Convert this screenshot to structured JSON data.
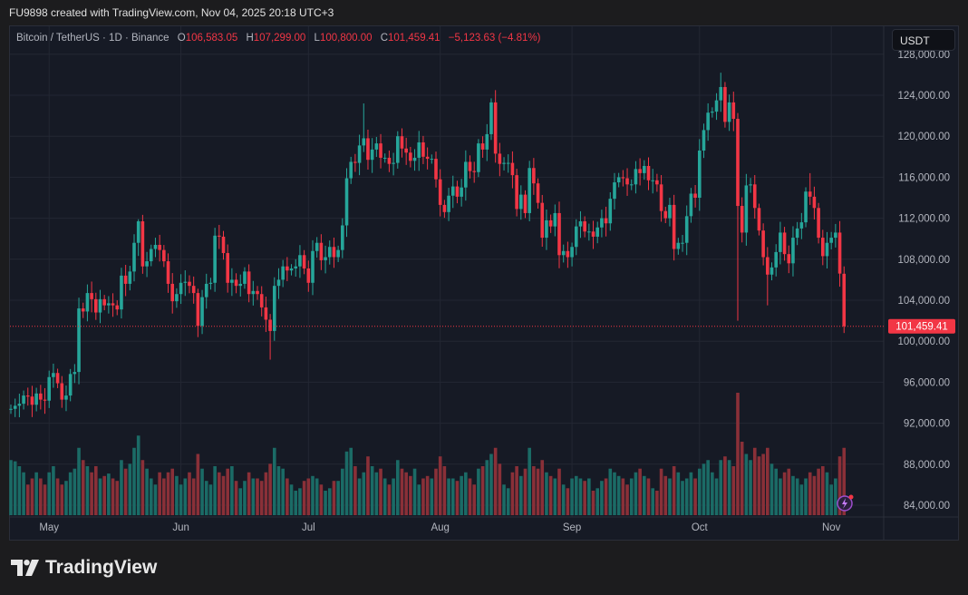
{
  "credit": "FU9898 created with TradingView.com, Nov 04, 2025 20:18 UTC+3",
  "legend": {
    "symbol": "Bitcoin / TetherUS · 1D · Binance",
    "o_label": "O",
    "o": "106,583.05",
    "h_label": "H",
    "h": "107,299.00",
    "l_label": "L",
    "l": "100,800.00",
    "c_label": "C",
    "c": "101,459.41",
    "change": "−5,123.63 (−4.81%)"
  },
  "currency_button": "USDT",
  "logo_text": "TradingView",
  "colors": {
    "up": "#26a69a",
    "down": "#f23645",
    "vol_up": "#1b6b66",
    "vol_down": "#8a3038",
    "background": "#161a25"
  },
  "chart_data": {
    "type": "candlestick",
    "start_date": "2025-04-22",
    "end_date": "2025-11-04",
    "interval": "1D",
    "ylim": [
      84000,
      128000
    ],
    "y_ticks": [
      128000,
      124000,
      120000,
      116000,
      112000,
      108000,
      104000,
      100000,
      96000,
      92000,
      88000,
      84000
    ],
    "y_tick_labels": [
      "128,000.00",
      "124,000.00",
      "120,000.00",
      "116,000.00",
      "112,000.00",
      "108,000.00",
      "104,000.00",
      "100,000.00",
      "96,000.00",
      "92,000.00",
      "88,000.00",
      "84,000.00"
    ],
    "x_tick_labels": [
      {
        "label": "May",
        "date": "2025-05-01"
      },
      {
        "label": "Jun",
        "date": "2025-06-01"
      },
      {
        "label": "Jul",
        "date": "2025-07-01"
      },
      {
        "label": "Aug",
        "date": "2025-08-01"
      },
      {
        "label": "Sep",
        "date": "2025-09-01"
      },
      {
        "label": "Oct",
        "date": "2025-10-01"
      },
      {
        "label": "Nov",
        "date": "2025-11-01"
      }
    ],
    "last_price": 101459.41,
    "last_price_label": "101,459.41",
    "grid": true,
    "close_k": [
      93.4,
      93.7,
      93.9,
      94.7,
      94.6,
      93.8,
      94.9,
      94.3,
      94.2,
      96.5,
      96.9,
      95.9,
      94.3,
      94.7,
      96.8,
      97.0,
      103.2,
      102.9,
      104.7,
      104.1,
      102.8,
      104.1,
      103.5,
      103.7,
      103.5,
      103.1,
      106.4,
      105.6,
      106.8,
      109.6,
      111.7,
      107.3,
      107.8,
      109.0,
      109.4,
      108.9,
      107.8,
      105.6,
      103.9,
      104.6,
      105.7,
      105.8,
      105.4,
      104.7,
      101.5,
      104.3,
      105.6,
      105.7,
      110.3,
      110.2,
      108.6,
      105.7,
      106.0,
      105.4,
      105.6,
      106.8,
      104.6,
      104.9,
      104.6,
      103.3,
      102.1,
      101.0,
      105.4,
      106.0,
      107.3,
      106.9,
      107.1,
      107.3,
      108.4,
      107.1,
      105.7,
      108.8,
      109.6,
      107.9,
      108.2,
      109.2,
      108.2,
      108.9,
      111.3,
      115.9,
      117.5,
      117.4,
      119.1,
      119.8,
      117.7,
      118.7,
      119.3,
      117.9,
      117.9,
      117.3,
      117.4,
      120.0,
      118.8,
      118.4,
      117.6,
      117.9,
      119.4,
      118.0,
      117.8,
      117.8,
      115.8,
      113.3,
      112.6,
      114.2,
      115.1,
      114.1,
      115.0,
      117.5,
      116.6,
      116.5,
      119.3,
      118.7,
      120.2,
      123.3,
      118.3,
      117.3,
      117.4,
      117.4,
      116.2,
      112.9,
      114.3,
      112.5,
      116.9,
      115.4,
      113.5,
      110.1,
      111.8,
      111.2,
      112.5,
      108.4,
      108.8,
      108.2,
      109.2,
      111.2,
      111.7,
      110.7,
      110.7,
      110.2,
      111.1,
      112.0,
      111.5,
      113.9,
      115.5,
      116.0,
      115.9,
      115.3,
      115.3,
      116.8,
      116.4,
      117.1,
      115.7,
      115.7,
      115.3,
      112.7,
      112.0,
      113.3,
      109.0,
      109.6,
      109.6,
      112.2,
      114.4,
      114.0,
      118.6,
      120.6,
      122.3,
      122.4,
      123.5,
      124.8,
      121.4,
      123.3,
      121.7,
      113.2,
      110.6,
      115.2,
      115.3,
      113.0,
      110.8,
      108.2,
      106.5,
      107.2,
      108.7,
      110.6,
      108.5,
      107.6,
      110.1,
      111.0,
      111.6,
      114.6,
      114.1,
      113.0,
      110.1,
      108.3,
      109.6,
      110.1,
      110.6,
      106.6,
      101.46
    ],
    "wick_extremes_k": {
      "2025-05-22": {
        "h": 111.9
      },
      "2025-06-05": {
        "l": 100.4
      },
      "2025-06-22": {
        "l": 98.2
      },
      "2025-07-14": {
        "h": 123.2
      },
      "2025-08-13": {
        "h": 123.7
      },
      "2025-08-14": {
        "h": 124.5
      },
      "2025-09-01": {
        "l": 107.3
      },
      "2025-10-06": {
        "h": 126.2
      },
      "2025-10-10": {
        "l": 102.0
      },
      "2025-10-17": {
        "l": 103.5
      },
      "2025-10-27": {
        "h": 116.4
      },
      "2025-11-04": {
        "o": 106.583,
        "h": 107.299,
        "l": 100.8
      }
    },
    "volume_relative": [
      45,
      44,
      40,
      35,
      25,
      30,
      35,
      30,
      25,
      35,
      40,
      30,
      25,
      28,
      35,
      38,
      55,
      45,
      40,
      35,
      40,
      30,
      32,
      34,
      30,
      28,
      45,
      38,
      42,
      55,
      65,
      45,
      38,
      30,
      25,
      35,
      30,
      35,
      38,
      32,
      25,
      30,
      35,
      30,
      50,
      38,
      28,
      25,
      40,
      35,
      32,
      38,
      40,
      28,
      22,
      28,
      35,
      30,
      30,
      28,
      35,
      42,
      55,
      40,
      38,
      30,
      25,
      20,
      22,
      28,
      30,
      32,
      30,
      25,
      20,
      22,
      28,
      28,
      38,
      52,
      55,
      40,
      30,
      35,
      48,
      40,
      35,
      38,
      30,
      25,
      30,
      45,
      38,
      35,
      32,
      38,
      25,
      30,
      32,
      30,
      38,
      48,
      40,
      30,
      30,
      28,
      32,
      35,
      30,
      25,
      38,
      40,
      45,
      50,
      55,
      42,
      25,
      22,
      35,
      40,
      32,
      38,
      55,
      40,
      38,
      45,
      35,
      32,
      30,
      38,
      25,
      22,
      30,
      32,
      30,
      28,
      30,
      20,
      22,
      28,
      30,
      38,
      35,
      32,
      30,
      25,
      30,
      35,
      38,
      32,
      30,
      22,
      20,
      38,
      32,
      30,
      40,
      35,
      28,
      30,
      35,
      30,
      38,
      42,
      45,
      35,
      30,
      45,
      48,
      45,
      40,
      100,
      60,
      50,
      45,
      55,
      48,
      50,
      55,
      42,
      38,
      30,
      35,
      38,
      32,
      30,
      25,
      30,
      35,
      32,
      38,
      40,
      35,
      25,
      30,
      48,
      55
    ]
  }
}
